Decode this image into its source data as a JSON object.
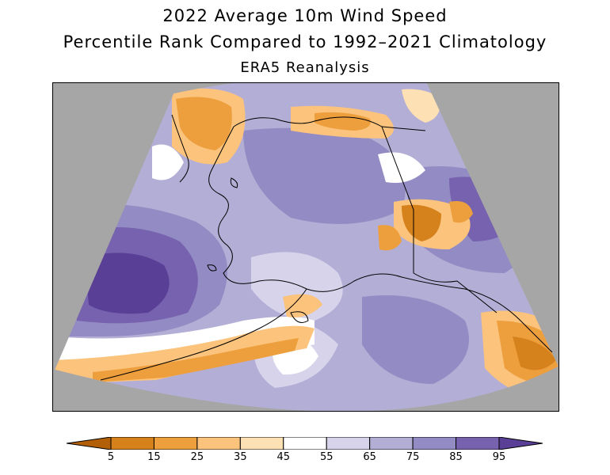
{
  "title": {
    "line1": "2022 Average 10m Wind Speed",
    "line2": "Percentile Rank Compared to 1992–2021 Climatology",
    "line3": "ERA5 Reanalysis"
  },
  "map": {
    "region": "Alaska",
    "background_color": "#a6a6a6",
    "coastline_color": "#000000"
  },
  "colorbar": {
    "ticks": [
      "5",
      "15",
      "25",
      "35",
      "45",
      "55",
      "65",
      "75",
      "85",
      "95"
    ],
    "colors": [
      "#b25f07",
      "#d5811c",
      "#ee9f3d",
      "#fbc37c",
      "#fde0b3",
      "#ffffff",
      "#d6d3ea",
      "#b3aed6",
      "#938bc3",
      "#7662ae",
      "#5a3f97"
    ],
    "extend": "both"
  }
}
